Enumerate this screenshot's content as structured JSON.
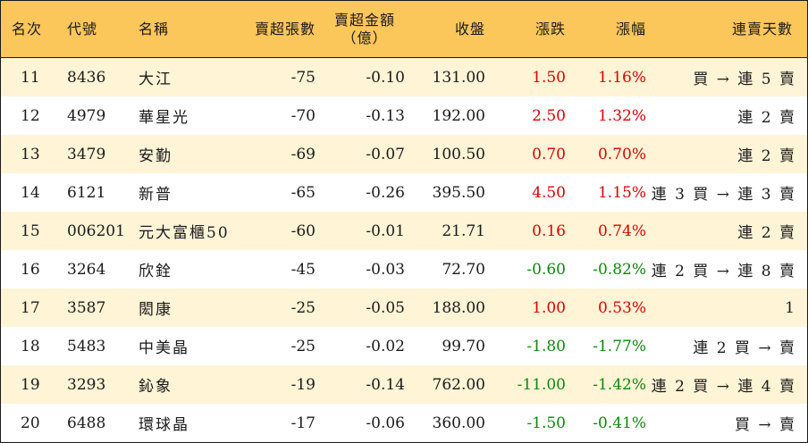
{
  "headers": {
    "rank": "名次",
    "code": "代號",
    "name": "名稱",
    "net_sell_lots": "賣超張數",
    "net_sell_amount_line1": "賣超金額",
    "net_sell_amount_line2": "（億）",
    "close": "收盤",
    "change": "漲跌",
    "change_pct": "漲幅",
    "streak": "連賣天數"
  },
  "colors": {
    "header_bg": "#fbc65a",
    "odd_row_bg": "#fff4d6",
    "up": "#e00000",
    "down": "#0a8a0a"
  },
  "rows": [
    {
      "rank": "11",
      "code": "8436",
      "name": "大江",
      "lots": "-75",
      "amount": "-0.10",
      "close": "131.00",
      "change": "1.50",
      "pct": "1.16%",
      "trend": "up",
      "streak": "買 → 連 5 賣"
    },
    {
      "rank": "12",
      "code": "4979",
      "name": "華星光",
      "lots": "-70",
      "amount": "-0.13",
      "close": "192.00",
      "change": "2.50",
      "pct": "1.32%",
      "trend": "up",
      "streak": "連 2 賣"
    },
    {
      "rank": "13",
      "code": "3479",
      "name": "安勤",
      "lots": "-69",
      "amount": "-0.07",
      "close": "100.50",
      "change": "0.70",
      "pct": "0.70%",
      "trend": "up",
      "streak": "連 2 賣"
    },
    {
      "rank": "14",
      "code": "6121",
      "name": "新普",
      "lots": "-65",
      "amount": "-0.26",
      "close": "395.50",
      "change": "4.50",
      "pct": "1.15%",
      "trend": "up",
      "streak": "連 3 買 → 連 3 賣"
    },
    {
      "rank": "15",
      "code": "006201",
      "name": "元大富櫃50",
      "lots": "-60",
      "amount": "-0.01",
      "close": "21.71",
      "change": "0.16",
      "pct": "0.74%",
      "trend": "up",
      "streak": "連 2 賣"
    },
    {
      "rank": "16",
      "code": "3264",
      "name": "欣銓",
      "lots": "-45",
      "amount": "-0.03",
      "close": "72.70",
      "change": "-0.60",
      "pct": "-0.82%",
      "trend": "down",
      "streak": "連 2 買 → 連 8 賣"
    },
    {
      "rank": "17",
      "code": "3587",
      "name": "閎康",
      "lots": "-25",
      "amount": "-0.05",
      "close": "188.00",
      "change": "1.00",
      "pct": "0.53%",
      "trend": "up",
      "streak": "1"
    },
    {
      "rank": "18",
      "code": "5483",
      "name": "中美晶",
      "lots": "-25",
      "amount": "-0.02",
      "close": "99.70",
      "change": "-1.80",
      "pct": "-1.77%",
      "trend": "down",
      "streak": "連 2 買 → 賣"
    },
    {
      "rank": "19",
      "code": "3293",
      "name": "鈊象",
      "lots": "-19",
      "amount": "-0.14",
      "close": "762.00",
      "change": "-11.00",
      "pct": "-1.42%",
      "trend": "down",
      "streak": "連 2 買 → 連 4 賣"
    },
    {
      "rank": "20",
      "code": "6488",
      "name": "環球晶",
      "lots": "-17",
      "amount": "-0.06",
      "close": "360.00",
      "change": "-1.50",
      "pct": "-0.41%",
      "trend": "down",
      "streak": "買 → 賣"
    }
  ]
}
